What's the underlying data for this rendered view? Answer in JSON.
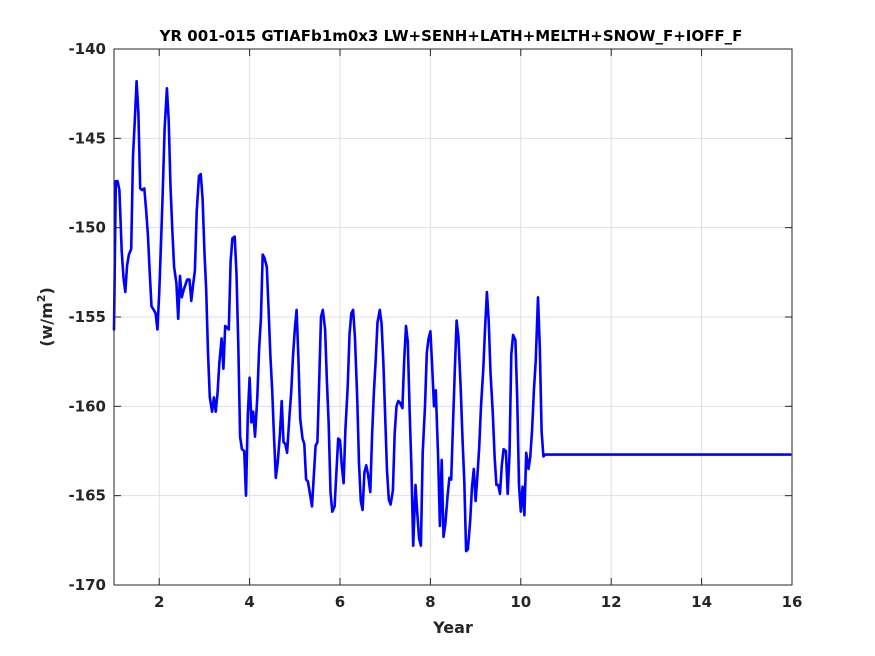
{
  "chart_data": {
    "type": "line",
    "title": "YR 001-015 GTIAFb1m0x3 LW+SENH+LATH+MELTH+SNOW_F+IOFF_F",
    "xlabel": "Year",
    "ylabel_main": "(w/m",
    "ylabel_sup": "2",
    "ylabel_close": ")",
    "xlim": [
      1,
      16
    ],
    "ylim": [
      -170,
      -140
    ],
    "xticks": [
      2,
      4,
      6,
      8,
      10,
      12,
      14,
      16
    ],
    "yticks": [
      -140,
      -145,
      -150,
      -155,
      -160,
      -165,
      -170
    ],
    "grid": true,
    "series": [
      {
        "color": "#0000ff",
        "x": [
          1.0,
          1.04,
          1.08,
          1.12,
          1.17,
          1.21,
          1.25,
          1.29,
          1.33,
          1.38,
          1.42,
          1.46,
          1.5,
          1.54,
          1.58,
          1.62,
          1.67,
          1.71,
          1.75,
          1.79,
          1.83,
          1.88,
          1.92,
          1.96,
          2.0,
          2.04,
          2.08,
          2.12,
          2.17,
          2.21,
          2.25,
          2.29,
          2.33,
          2.38,
          2.42,
          2.46,
          2.5,
          2.54,
          2.58,
          2.62,
          2.67,
          2.71,
          2.75,
          2.79,
          2.83,
          2.88,
          2.92,
          2.96,
          3.0,
          3.04,
          3.08,
          3.12,
          3.17,
          3.21,
          3.25,
          3.29,
          3.33,
          3.38,
          3.42,
          3.46,
          3.5,
          3.54,
          3.58,
          3.62,
          3.67,
          3.71,
          3.75,
          3.79,
          3.83,
          3.88,
          3.92,
          3.96,
          4.0,
          4.04,
          4.08,
          4.12,
          4.17,
          4.21,
          4.25,
          4.29,
          4.33,
          4.38,
          4.42,
          4.46,
          4.5,
          4.54,
          4.58,
          4.62,
          4.67,
          4.71,
          4.75,
          4.79,
          4.83,
          4.88,
          4.92,
          4.96,
          5.0,
          5.04,
          5.08,
          5.12,
          5.17,
          5.21,
          5.25,
          5.29,
          5.33,
          5.38,
          5.42,
          5.46,
          5.5,
          5.54,
          5.58,
          5.62,
          5.67,
          5.71,
          5.75,
          5.79,
          5.83,
          5.88,
          5.92,
          5.96,
          6.0,
          6.04,
          6.08,
          6.12,
          6.17,
          6.21,
          6.25,
          6.29,
          6.33,
          6.38,
          6.42,
          6.46,
          6.5,
          6.54,
          6.58,
          6.62,
          6.67,
          6.71,
          6.75,
          6.79,
          6.83,
          6.88,
          6.92,
          6.96,
          7.0,
          7.04,
          7.08,
          7.12,
          7.17,
          7.21,
          7.25,
          7.29,
          7.33,
          7.38,
          7.42,
          7.46,
          7.5,
          7.54,
          7.58,
          7.62,
          7.67,
          7.71,
          7.75,
          7.79,
          7.83,
          7.88,
          7.92,
          7.96,
          8.0,
          8.04,
          8.08,
          8.12,
          8.17,
          8.21,
          8.25,
          8.29,
          8.33,
          8.38,
          8.42,
          8.46,
          8.5,
          8.54,
          8.58,
          8.62,
          8.67,
          8.71,
          8.75,
          8.79,
          8.83,
          8.88,
          8.92,
          8.96,
          9.0,
          9.04,
          9.08,
          9.12,
          9.17,
          9.21,
          9.25,
          9.29,
          9.33,
          9.38,
          9.42,
          9.46,
          9.5,
          9.54,
          9.58,
          9.62,
          9.67,
          9.71,
          9.75,
          9.79,
          9.83,
          9.88,
          9.92,
          9.96,
          10.0,
          10.04,
          10.08,
          10.12,
          10.17,
          10.21,
          10.25,
          10.29,
          10.33,
          10.38,
          10.42,
          10.46,
          10.5,
          10.54,
          10.58,
          10.62,
          10.67,
          10.71,
          10.75,
          10.79,
          10.83,
          10.88,
          10.92,
          10.96,
          11.0,
          11.04,
          11.08,
          11.12,
          11.17,
          11.21,
          11.25,
          11.29,
          11.33,
          11.38,
          11.42,
          11.46,
          11.5,
          11.54,
          11.58,
          11.62,
          11.67,
          11.71,
          11.75,
          11.79,
          11.83,
          11.88,
          11.92,
          11.96,
          12.0,
          12.04,
          12.08,
          12.12,
          12.17,
          12.21,
          12.25,
          12.29,
          12.33,
          12.38,
          12.42,
          12.46,
          12.5,
          12.54,
          12.58,
          12.62,
          12.67,
          12.71,
          12.75,
          12.79,
          12.83,
          12.88,
          12.92,
          12.96,
          13.0,
          13.04,
          13.08,
          13.12,
          13.17,
          13.21,
          13.25,
          13.29,
          13.33,
          13.38,
          13.42,
          13.46,
          13.5,
          13.54,
          13.58,
          13.62,
          13.67,
          13.71,
          13.75,
          13.79,
          13.83,
          13.88,
          13.92,
          13.96,
          14.0,
          14.04,
          14.08,
          14.12,
          14.17,
          14.21,
          14.25,
          14.29,
          14.33,
          14.38,
          14.42,
          14.46,
          14.5,
          14.54,
          14.58,
          14.62,
          14.67,
          14.71,
          14.75,
          14.79,
          14.83,
          14.88,
          14.92,
          14.96,
          15.0,
          15.04,
          15.08,
          15.12,
          15.17,
          15.21,
          15.25,
          15.29,
          15.33,
          15.38,
          15.42,
          15.46,
          15.5,
          15.54,
          15.58,
          15.62,
          15.67,
          15.71,
          15.75,
          15.79,
          15.83,
          15.88,
          15.92,
          15.96
        ],
        "y": [
          -155.7,
          -147.4,
          -147.4,
          -147.9,
          -151.3,
          -152.8,
          -153.6,
          -152.1,
          -151.5,
          -151.2,
          -146.0,
          -144.0,
          -141.8,
          -143.6,
          -147.8,
          -147.9,
          -147.8,
          -149.0,
          -150.4,
          -152.5,
          -154.4,
          -154.6,
          -154.8,
          -155.7,
          -153.7,
          -150.9,
          -147.9,
          -144.5,
          -142.2,
          -144.0,
          -147.7,
          -150.1,
          -152.2,
          -153.1,
          -155.1,
          -152.7,
          -153.9,
          -153.5,
          -153.2,
          -152.9,
          -152.9,
          -154.1,
          -153.2,
          -152.4,
          -149.1,
          -147.1,
          -147.0,
          -148.4,
          -151.3,
          -153.5,
          -157.0,
          -159.5,
          -160.3,
          -159.5,
          -160.3,
          -159.3,
          -157.6,
          -156.2,
          -157.9,
          -155.5,
          -155.6,
          -155.7,
          -151.9,
          -150.6,
          -150.5,
          -152.6,
          -156.6,
          -161.7,
          -162.4,
          -162.5,
          -165.0,
          -160.5,
          -158.4,
          -160.9,
          -160.3,
          -161.7,
          -159.5,
          -156.8,
          -155.1,
          -151.5,
          -151.7,
          -152.2,
          -154.6,
          -157.2,
          -159.1,
          -161.7,
          -164.0,
          -163.2,
          -161.6,
          -159.7,
          -162.0,
          -162.1,
          -162.6,
          -160.6,
          -159.2,
          -157.2,
          -155.7,
          -154.6,
          -157.3,
          -160.7,
          -161.8,
          -162.1,
          -164.1,
          -164.2,
          -164.8,
          -165.6,
          -163.9,
          -162.2,
          -162.0,
          -158.6,
          -155.0,
          -154.6,
          -155.7,
          -158.6,
          -161.0,
          -164.8,
          -165.9,
          -165.6,
          -163.7,
          -161.8,
          -161.9,
          -163.3,
          -164.3,
          -161.3,
          -158.9,
          -156.0,
          -154.8,
          -154.6,
          -156.1,
          -159.5,
          -163.2,
          -165.3,
          -165.8,
          -163.7,
          -163.3,
          -163.8,
          -164.8,
          -161.6,
          -159.2,
          -157.4,
          -155.3,
          -154.6,
          -155.4,
          -157.6,
          -160.6,
          -163.6,
          -165.2,
          -165.5,
          -164.7,
          -161.5,
          -160.0,
          -159.7,
          -159.8,
          -160.1,
          -157.4,
          -155.5,
          -156.4,
          -160.2,
          -163.4,
          -167.8,
          -164.4,
          -166.0,
          -167.4,
          -167.8,
          -162.6,
          -160.0,
          -157.0,
          -156.2,
          -155.8,
          -157.8,
          -160.0,
          -159.1,
          -162.8,
          -166.7,
          -163.0,
          -167.3,
          -166.6,
          -165.0,
          -164.0,
          -164.1,
          -161.0,
          -158.0,
          -155.2,
          -156.1,
          -159.0,
          -161.8,
          -164.2,
          -168.1,
          -168.0,
          -166.4,
          -164.5,
          -163.5,
          -165.3,
          -163.9,
          -162.3,
          -160.0,
          -157.9,
          -155.6,
          -153.6,
          -155.2,
          -158.1,
          -160.4,
          -162.8,
          -164.4,
          -164.4,
          -164.9,
          -163.3,
          -162.4,
          -162.5,
          -164.9,
          -162.7,
          -157.1,
          -156.0,
          -156.3,
          -159.5,
          -164.4,
          -165.9,
          -164.5,
          -166.1,
          -162.6,
          -163.5,
          -162.8,
          -161.3,
          -159.1,
          -157.5,
          -153.9,
          -156.7,
          -161.4,
          -162.8,
          -162.7,
          -162.7,
          -162.7,
          -162.7,
          -162.7,
          -162.7,
          -162.7,
          -162.7,
          -162.7,
          -162.7,
          -162.7,
          -162.7,
          -162.7,
          -162.7,
          -162.7,
          -162.7,
          -162.7,
          -162.7,
          -162.7,
          -162.7,
          -162.7,
          -162.7,
          -162.7,
          -162.7,
          -162.7,
          -162.7,
          -162.7,
          -162.7,
          -162.7,
          -162.7,
          -162.7,
          -162.7,
          -162.7,
          -162.7,
          -162.7,
          -162.7,
          -162.7,
          -162.7,
          -162.7,
          -162.7,
          -162.7,
          -162.7,
          -162.7,
          -162.7,
          -162.7,
          -162.7,
          -162.7,
          -162.7,
          -162.7,
          -162.7,
          -162.7,
          -162.7,
          -162.7,
          -162.7,
          -162.7,
          -162.7,
          -162.7,
          -162.7,
          -162.7,
          -162.7,
          -162.7,
          -162.7,
          -162.7,
          -162.7,
          -162.7,
          -162.7,
          -162.7,
          -162.7,
          -162.7,
          -162.7,
          -162.7,
          -162.7,
          -162.7,
          -162.7,
          -162.7,
          -162.7,
          -162.7,
          -162.7,
          -162.7,
          -162.7,
          -162.7,
          -162.7,
          -162.7,
          -162.7,
          -162.7,
          -162.7,
          -162.7,
          -162.7,
          -162.7,
          -162.7,
          -162.7,
          -162.7,
          -162.7,
          -162.7,
          -162.7,
          -162.7,
          -162.7,
          -162.7,
          -162.7,
          -162.7,
          -162.7,
          -162.7,
          -162.7,
          -162.7,
          -162.7,
          -162.7,
          -162.7,
          -162.7,
          -162.7,
          -162.7,
          -162.7,
          -162.7,
          -162.7,
          -162.7,
          -162.7,
          -162.7,
          -162.7,
          -162.7,
          -162.7,
          -162.7,
          -162.7,
          -162.7,
          -162.7,
          -162.7,
          -162.7,
          -162.7,
          -162.7,
          -162.7,
          -162.7,
          -162.7,
          -162.7
        ]
      }
    ]
  }
}
